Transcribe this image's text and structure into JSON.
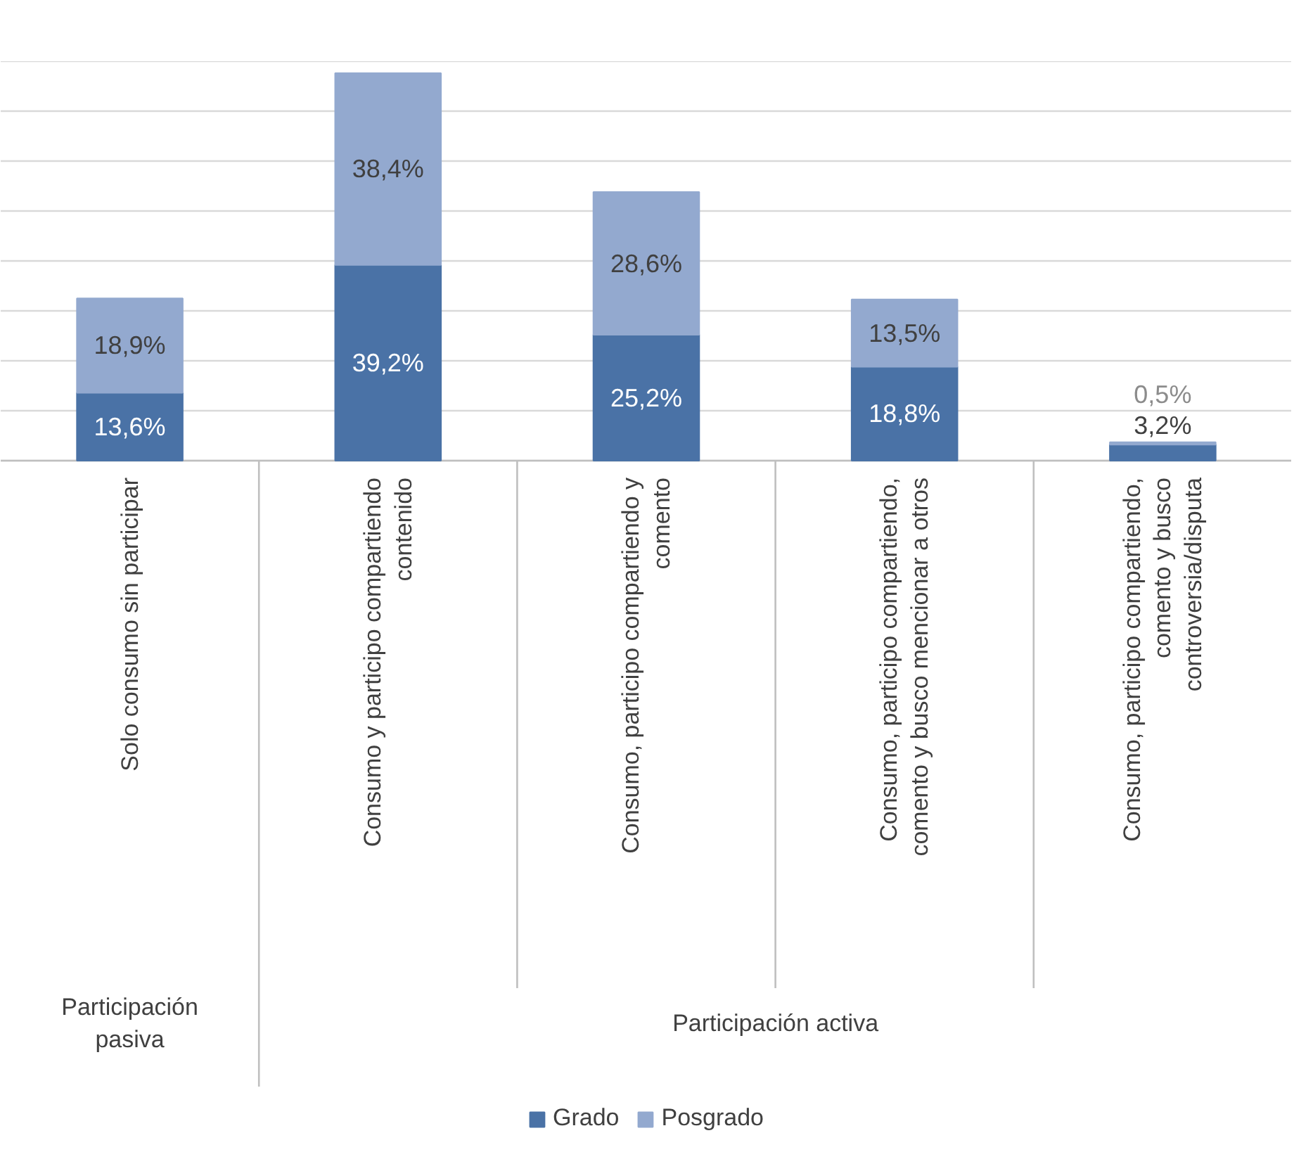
{
  "chart_data": {
    "type": "bar",
    "stacked": true,
    "categories": [
      "Solo consumo sin participar",
      "Consumo y participo compartiendo contenido",
      "Consumo, participo compartiendo y comento",
      "Consumo, participo compartiendo, comento y busco mencionar a otros",
      "Consumo, participo compartiendo, comento y busco controversia/disputa"
    ],
    "series": [
      {
        "name": "Grado",
        "color": "#4a72a6",
        "values": [
          13.6,
          39.2,
          25.2,
          18.8,
          3.2
        ],
        "value_labels": [
          "13,6%",
          "39,2%",
          "25,2%",
          "18,8%",
          "3,2%"
        ]
      },
      {
        "name": "Posgrado",
        "color": "#93a9cf",
        "values": [
          18.9,
          38.4,
          28.6,
          13.5,
          0.5
        ],
        "value_labels": [
          "18,9%",
          "38,4%",
          "28,6%",
          "13,5%",
          "0,5%"
        ]
      }
    ],
    "ylim": [
      0,
      80
    ],
    "yticks": [
      {
        "value": 0,
        "label": null
      },
      {
        "value": 10,
        "label": null
      },
      {
        "value": 20,
        "label": null
      },
      {
        "value": 30,
        "label": null
      },
      {
        "value": 40,
        "label": null
      },
      {
        "value": 50,
        "label": null
      },
      {
        "value": 60,
        "label": null
      },
      {
        "value": 70,
        "label": null
      },
      {
        "value": 80,
        "label": null
      }
    ],
    "tick_labels": "x",
    "grid": "y",
    "legend": "bottom",
    "annotations": [
      "Participación pasiva",
      "Participación activa"
    ]
  }
}
